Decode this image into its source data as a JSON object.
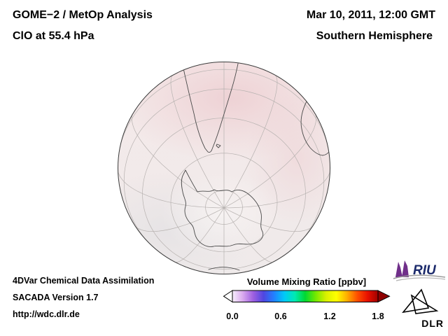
{
  "header": {
    "instrument": "GOME−2 / MetOp Analysis",
    "quantity": "ClO at 55.4 hPa",
    "datetime": "Mar 10, 2011, 12:00 GMT",
    "region": "Southern Hemisphere"
  },
  "footer": {
    "line1": "4DVar Chemical Data Assimilation",
    "line2": "SACADA Version 1.7",
    "line3": "http://wdc.dlr.de"
  },
  "colorbar": {
    "title": "Volume Mixing Ratio [ppbv]",
    "ticks": [
      "0.0",
      "0.6",
      "1.2",
      "1.8"
    ],
    "colors": [
      "#f7effc",
      "#d9a9ee",
      "#9e5fe0",
      "#4f46e0",
      "#2181ff",
      "#00c9f8",
      "#00e9b2",
      "#00d832",
      "#72e800",
      "#d9f000",
      "#ffff00",
      "#ffb000",
      "#ff5000",
      "#e81000",
      "#a00000"
    ],
    "left_arrow_color": "#ffffff",
    "right_arrow_color": "#8f0000"
  },
  "logos": {
    "riu": "RIU",
    "dlr": "DLR"
  },
  "globe": {
    "hemisphere": "Southern",
    "graticule_parallels_deg": [
      -80,
      -60,
      -40,
      -20,
      0,
      20
    ],
    "graticule_meridians_step_deg": 30
  },
  "chart_data": {
    "type": "heatmap",
    "title": "GOME−2 / MetOp Analysis — ClO at 55.4 hPa",
    "subtitle": "Mar 10, 2011, 12:00 GMT — Southern Hemisphere",
    "projection": "orthographic (south polar view)",
    "colorbar_label": "Volume Mixing Ratio [ppbv]",
    "range": [
      0.0,
      1.8
    ],
    "ticks": [
      0.0,
      0.6,
      1.2,
      1.8
    ],
    "field_note": "values near the low end of the scale (pale pink/white) over the hemisphere"
  }
}
